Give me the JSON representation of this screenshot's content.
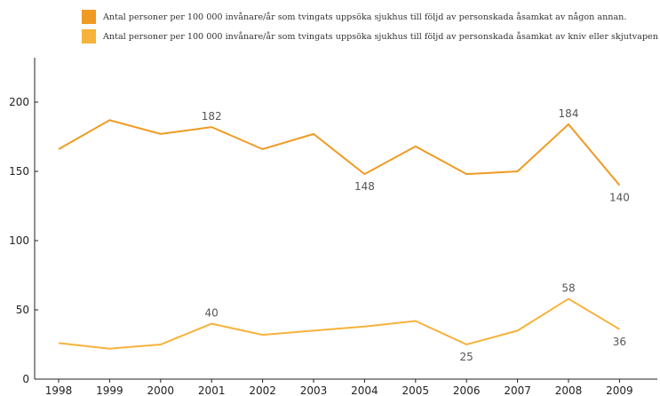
{
  "chart_data": {
    "type": "line",
    "categories": [
      "1998",
      "1999",
      "2000",
      "2001",
      "2002",
      "2003",
      "2004",
      "2005",
      "2006",
      "2007",
      "2008",
      "2009"
    ],
    "series": [
      {
        "name": "Antal personer per 100 000 invånare/år som tvingats uppsöka sjukhus till följd av personskada åsamkat av någon annan.",
        "color": "#ef9a23",
        "values": [
          166,
          187,
          177,
          182,
          166,
          177,
          148,
          168,
          148,
          150,
          184,
          140
        ]
      },
      {
        "name": "Antal personer per 100 000 invånare/år som tvingats uppsöka sjukhus till följd av personskada åsamkat av kniv eller skjutvapen",
        "color": "#f7b23b",
        "values": [
          26,
          22,
          25,
          40,
          32,
          35,
          38,
          42,
          25,
          35,
          58,
          36
        ]
      }
    ],
    "data_labels": [
      {
        "series": 0,
        "index": 3,
        "text": "182",
        "position": "above"
      },
      {
        "series": 0,
        "index": 6,
        "text": "148",
        "position": "below"
      },
      {
        "series": 0,
        "index": 10,
        "text": "184",
        "position": "above"
      },
      {
        "series": 0,
        "index": 11,
        "text": "140",
        "position": "below"
      },
      {
        "series": 1,
        "index": 3,
        "text": "40",
        "position": "above"
      },
      {
        "series": 1,
        "index": 8,
        "text": "25",
        "position": "below"
      },
      {
        "series": 1,
        "index": 10,
        "text": "58",
        "position": "above"
      },
      {
        "series": 1,
        "index": 11,
        "text": "36",
        "position": "below"
      }
    ],
    "y_ticks": [
      0,
      50,
      100,
      150,
      200
    ],
    "ylim": [
      0,
      200
    ],
    "grid": false,
    "legend_position": "top",
    "title": "",
    "xlabel": "",
    "ylabel": ""
  }
}
